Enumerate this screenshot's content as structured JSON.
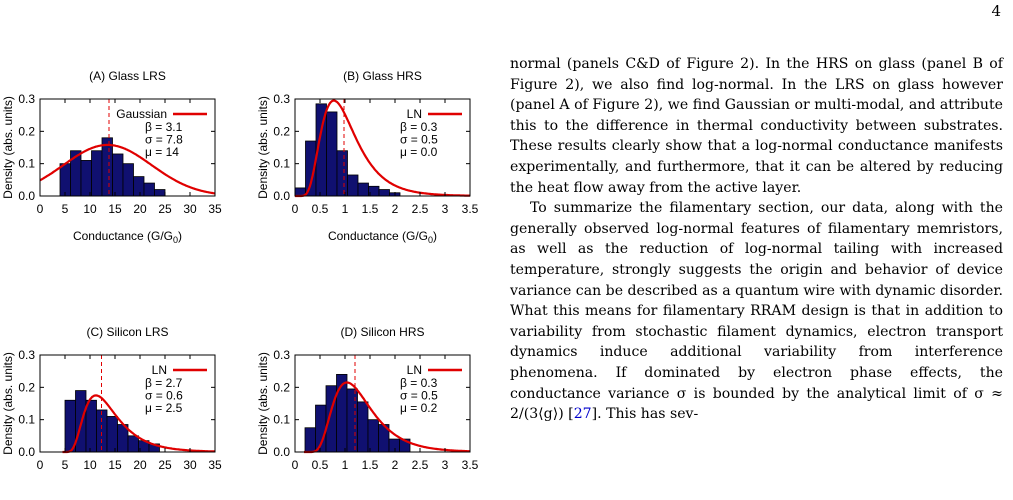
{
  "page_number": "4",
  "chart_data": [
    {
      "type": "bar",
      "panel": "A",
      "title": "(A) Glass LRS",
      "xlabel": "Conductance (G/G0)",
      "ylabel": "Density (abs. units)",
      "xlim": [
        0,
        35
      ],
      "ylim": [
        0,
        0.3
      ],
      "xticks": [
        "0",
        "5",
        "10",
        "15",
        "20",
        "25",
        "30",
        "35"
      ],
      "yticks": [
        "0.0",
        "0.1",
        "0.2",
        "0.3"
      ],
      "bin_start": 4.0,
      "bin_width": 2.1,
      "values": [
        0.1,
        0.14,
        0.11,
        0.14,
        0.18,
        0.13,
        0.1,
        0.06,
        0.04,
        0.02
      ],
      "mean_line_x": 13.8,
      "fit_legend": "Gaussian",
      "params": [
        "β = 3.1",
        "σ = 7.8",
        "μ = 14"
      ]
    },
    {
      "type": "bar",
      "panel": "B",
      "title": "(B) Glass HRS",
      "xlabel": "Conductance (G/G0)",
      "ylabel": "Density (abs. units)",
      "xlim": [
        0,
        3.5
      ],
      "ylim": [
        0,
        0.3
      ],
      "xticks": [
        "0",
        "0.5",
        "1",
        "1.5",
        "2",
        "2.5",
        "3",
        "3.5"
      ],
      "yticks": [
        "0.0",
        "0.1",
        "0.2",
        "0.3"
      ],
      "bin_start": 0.0,
      "bin_width": 0.21,
      "values": [
        0.025,
        0.17,
        0.285,
        0.26,
        0.14,
        0.065,
        0.04,
        0.03,
        0.02,
        0.01
      ],
      "mean_line_x": 0.98,
      "fit_legend": "LN",
      "params": [
        "β = 0.3",
        "σ = 0.5",
        "μ = 0.0"
      ]
    },
    {
      "type": "bar",
      "panel": "C",
      "title": "(C) Silicon LRS",
      "xlabel": "Conductance (G/G0)",
      "ylabel": "Density (abs. units)",
      "xlim": [
        0,
        35
      ],
      "ylim": [
        0,
        0.3
      ],
      "xticks": [
        "0",
        "5",
        "10",
        "15",
        "20",
        "25",
        "30",
        "35"
      ],
      "yticks": [
        "0.0",
        "0.1",
        "0.2",
        "0.3"
      ],
      "bin_start": 5.0,
      "bin_width": 2.1,
      "values": [
        0.16,
        0.19,
        0.16,
        0.13,
        0.11,
        0.085,
        0.05,
        0.035,
        0.025
      ],
      "mean_line_x": 12.3,
      "fit_legend": "LN",
      "params": [
        "β = 2.7",
        "σ = 0.6",
        "μ = 2.5"
      ]
    },
    {
      "type": "bar",
      "panel": "D",
      "title": "(D) Silicon HRS",
      "xlabel": "Conductance (G/G0)",
      "ylabel": "Density (abs. units)",
      "xlim": [
        0,
        3.5
      ],
      "ylim": [
        0,
        0.3
      ],
      "xticks": [
        "0",
        "0.5",
        "1",
        "1.5",
        "2",
        "2.5",
        "3",
        "3.5"
      ],
      "yticks": [
        "0.0",
        "0.1",
        "0.2",
        "0.3"
      ],
      "bin_start": 0.2,
      "bin_width": 0.21,
      "values": [
        0.075,
        0.145,
        0.205,
        0.24,
        0.195,
        0.155,
        0.1,
        0.085,
        0.04,
        0.04
      ],
      "mean_line_x": 1.2,
      "fit_legend": "LN",
      "params": [
        "β = 0.3",
        "σ = 0.5",
        "μ = 0.2"
      ]
    }
  ],
  "text": {
    "p1": "normal (panels C&D of Figure 2). In the HRS on glass (panel B of Figure 2), we also find log-normal. In the LRS on glass however (panel A of Figure 2), we find Gaussian or multi-modal, and attribute this to the difference in thermal conductivity between substrates. These results clearly show that a log-normal conductance manifests experimentally, and furthermore, that it can be altered by reducing the heat flow away from the active layer.",
    "p2": "To summarize the filamentary section, our data, along with the generally observed log-normal features of filamentary memristors, as well as the reduction of log-normal tailing with increased temperature, strongly suggests the origin and behavior of device variance can be described as a quantum wire with dynamic disorder. What this means for filamentary RRAM design is that in addition to variability from stochastic filament dynamics, electron transport dynamics induce additional variability from interference phenomena. If dominated by electron phase effects, the conductance variance σ is bounded by the analytical limit of σ ≈ 2/(3⟨g⟩) [",
    "p2_ref": "27",
    "p2_end": "]. This has sev-"
  }
}
